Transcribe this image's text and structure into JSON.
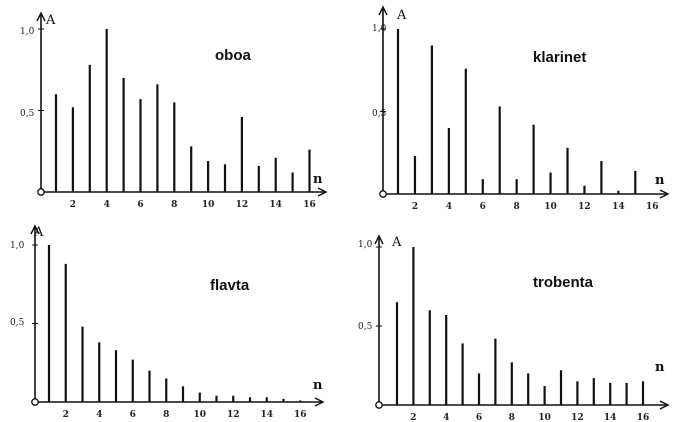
{
  "chart_data": [
    {
      "type": "bar",
      "title": "oboa",
      "xlabel": "n",
      "ylabel": "A",
      "ylim": [
        0,
        1.0
      ],
      "yticks": [
        "0,5",
        "1,0"
      ],
      "xticks": [
        "2",
        "4",
        "6",
        "8",
        "10",
        "12",
        "14",
        "16"
      ],
      "x": [
        1,
        2,
        3,
        4,
        5,
        6,
        7,
        8,
        9,
        10,
        11,
        12,
        13,
        14,
        15,
        16
      ],
      "values": [
        0.6,
        0.52,
        0.78,
        1.0,
        0.7,
        0.57,
        0.66,
        0.55,
        0.28,
        0.19,
        0.17,
        0.46,
        0.16,
        0.21,
        0.12,
        0.26
      ]
    },
    {
      "type": "bar",
      "title": "klarinet",
      "xlabel": "n",
      "ylabel": "A",
      "ylim": [
        0,
        1.0
      ],
      "yticks": [
        "0,5",
        "1,0"
      ],
      "xticks": [
        "2",
        "4",
        "6",
        "8",
        "10",
        "12",
        "14",
        "16"
      ],
      "x": [
        1,
        2,
        3,
        4,
        5,
        6,
        7,
        8,
        9,
        10,
        11,
        12,
        13,
        14,
        15,
        16
      ],
      "values": [
        1.0,
        0.23,
        0.9,
        0.4,
        0.76,
        0.09,
        0.53,
        0.09,
        0.42,
        0.13,
        0.28,
        0.05,
        0.2,
        0.02,
        0.14,
        0.0
      ]
    },
    {
      "type": "bar",
      "title": "flavta",
      "xlabel": "n",
      "ylabel": "A",
      "ylim": [
        0,
        1.0
      ],
      "yticks": [
        "0,5",
        "1,0"
      ],
      "xticks": [
        "2",
        "4",
        "6",
        "8",
        "10",
        "12",
        "14",
        "16"
      ],
      "x": [
        1,
        2,
        3,
        4,
        5,
        6,
        7,
        8,
        9,
        10,
        11,
        12,
        13,
        14,
        15,
        16
      ],
      "values": [
        1.0,
        0.88,
        0.48,
        0.38,
        0.33,
        0.27,
        0.2,
        0.15,
        0.1,
        0.06,
        0.04,
        0.04,
        0.03,
        0.03,
        0.02,
        0.01
      ]
    },
    {
      "type": "bar",
      "title": "trobenta",
      "xlabel": "n",
      "ylabel": "A",
      "ylim": [
        0,
        1.0
      ],
      "yticks": [
        "0,5",
        "1,0"
      ],
      "xticks": [
        "2",
        "4",
        "6",
        "8",
        "10",
        "12",
        "14",
        "16"
      ],
      "x": [
        1,
        2,
        3,
        4,
        5,
        6,
        7,
        8,
        9,
        10,
        11,
        12,
        13,
        14,
        15,
        16
      ],
      "values": [
        0.65,
        1.0,
        0.6,
        0.57,
        0.39,
        0.2,
        0.42,
        0.27,
        0.2,
        0.12,
        0.22,
        0.15,
        0.17,
        0.14,
        0.14,
        0.15
      ]
    }
  ]
}
